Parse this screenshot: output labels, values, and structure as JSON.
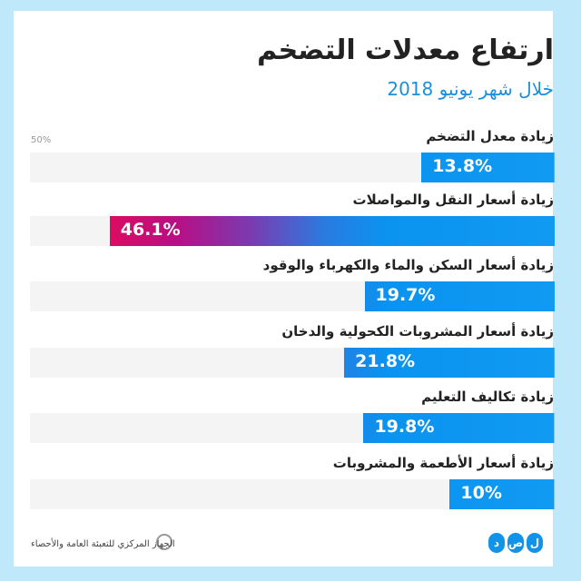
{
  "header": {
    "title": "ارتفاع معدلات التضخم",
    "subtitle": "خلال شهر يونيو 2018"
  },
  "chart_data": {
    "type": "bar",
    "orientation": "horizontal",
    "title": "ارتفاع معدلات التضخم",
    "subtitle": "خلال شهر يونيو 2018",
    "axis_max_label": "50%",
    "xlim": [
      0,
      50
    ],
    "categories": [
      "زيادة معدل التضخم",
      "زيادة أسعار النقل والمواصلات",
      "زيادة أسعار السكن والماء والكهرباء والوقود",
      "زيادة أسعار المشروبات الكحولية والدخان",
      "زيادة تكاليف التعليم",
      "زيادة أسعار الأطعمة والمشروبات"
    ],
    "values": [
      13.8,
      46.1,
      19.7,
      21.8,
      19.8,
      10
    ],
    "value_labels": [
      "13.8%",
      "46.1%",
      "19.7%",
      "21.8%",
      "19.8%",
      "10%"
    ]
  },
  "footer": {
    "source": "الجهاز المركزي للتعبئة العامة والأحصاء",
    "logo_letters": [
      "د",
      "ص",
      "ل"
    ]
  },
  "colors": {
    "background": "#bfe9fb",
    "blue": "#119af2",
    "red": "#f5084a"
  }
}
